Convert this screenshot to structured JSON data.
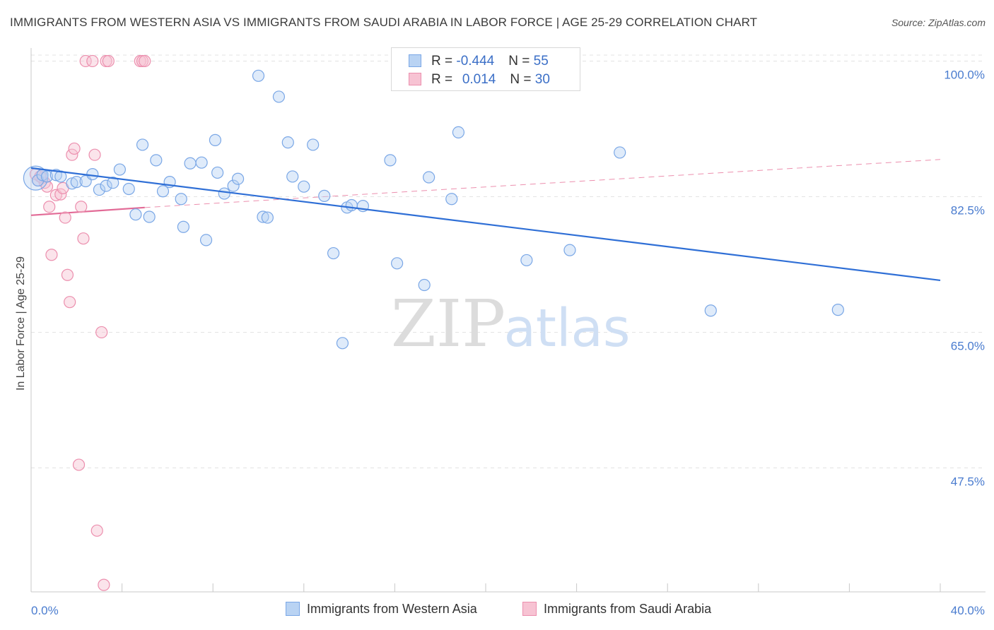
{
  "header": {
    "title": "IMMIGRANTS FROM WESTERN ASIA VS IMMIGRANTS FROM SAUDI ARABIA IN LABOR FORCE | AGE 25-29 CORRELATION CHART",
    "source": "Source: ZipAtlas.com"
  },
  "watermark": {
    "zip": "ZIP",
    "atlas": "atlas"
  },
  "legend": {
    "series1": {
      "r_label": "R = ",
      "r_value": "-0.444",
      "n_label": "N = ",
      "n_value": "55",
      "color": "#a9c8f0"
    },
    "series2": {
      "r_label": "R = ",
      "r_value": "0.014",
      "n_label": "N = ",
      "n_value": "30",
      "color": "#f5b6c9"
    }
  },
  "bottom_legend": {
    "series1": "Immigrants from Western Asia",
    "series2": "Immigrants from Saudi Arabia"
  },
  "chart_data": {
    "type": "scatter",
    "ylabel": "In Labor Force | Age 25-29",
    "xlabel": "",
    "xlim": [
      0,
      40
    ],
    "ylim": [
      31.5,
      101.5
    ],
    "y_ticks": [
      {
        "value": 100,
        "label": "100.0%"
      },
      {
        "value": 82.5,
        "label": "82.5%"
      },
      {
        "value": 65,
        "label": "65.0%"
      },
      {
        "value": 47.5,
        "label": "47.5%"
      }
    ],
    "x_ticks": [
      {
        "value": 0,
        "label": "0.0%"
      },
      {
        "value": 40,
        "label": "40.0%"
      }
    ],
    "grid": true,
    "legend_position": "top-center",
    "series": [
      {
        "name": "Immigrants from Western Asia",
        "color": "#7aa7e6",
        "fill": "#b9d3f3",
        "points": [
          [
            0.3,
            84.6
          ],
          [
            0.5,
            85.3
          ],
          [
            0.7,
            85.1
          ],
          [
            1.1,
            85.3
          ],
          [
            1.3,
            85.1
          ],
          [
            1.8,
            84.2
          ],
          [
            2.0,
            84.4
          ],
          [
            2.4,
            84.5
          ],
          [
            2.7,
            85.4
          ],
          [
            3.0,
            83.4
          ],
          [
            3.3,
            83.9
          ],
          [
            3.6,
            84.3
          ],
          [
            3.9,
            86.0
          ],
          [
            4.3,
            83.5
          ],
          [
            4.6,
            80.2
          ],
          [
            4.9,
            89.2
          ],
          [
            5.2,
            79.9
          ],
          [
            5.5,
            87.2
          ],
          [
            5.8,
            83.2
          ],
          [
            6.1,
            84.4
          ],
          [
            6.6,
            82.2
          ],
          [
            6.7,
            78.6
          ],
          [
            7.0,
            86.8
          ],
          [
            7.5,
            86.9
          ],
          [
            7.7,
            76.9
          ],
          [
            8.1,
            89.8
          ],
          [
            8.2,
            85.6
          ],
          [
            8.5,
            82.9
          ],
          [
            8.9,
            83.9
          ],
          [
            9.1,
            84.8
          ],
          [
            10.0,
            98.1
          ],
          [
            10.2,
            79.9
          ],
          [
            10.4,
            79.8
          ],
          [
            10.9,
            95.4
          ],
          [
            11.3,
            89.5
          ],
          [
            11.5,
            85.1
          ],
          [
            12.0,
            83.8
          ],
          [
            12.4,
            89.2
          ],
          [
            12.9,
            82.6
          ],
          [
            13.3,
            75.2
          ],
          [
            13.7,
            63.6
          ],
          [
            13.9,
            81.1
          ],
          [
            14.1,
            81.4
          ],
          [
            14.6,
            81.3
          ],
          [
            15.8,
            87.2
          ],
          [
            16.1,
            73.9
          ],
          [
            17.3,
            71.1
          ],
          [
            17.5,
            85.0
          ],
          [
            18.5,
            82.2
          ],
          [
            18.8,
            90.8
          ],
          [
            21.8,
            74.3
          ],
          [
            23.7,
            75.6
          ],
          [
            25.9,
            88.2
          ],
          [
            29.9,
            67.8
          ],
          [
            35.5,
            67.9
          ]
        ],
        "trend": {
          "x": [
            0,
            40
          ],
          "y": [
            86.2,
            71.7
          ],
          "style": "solid"
        }
      },
      {
        "name": "Immigrants from Saudi Arabia",
        "color": "#ec8fae",
        "fill": "#f7c3d3",
        "points": [
          [
            0.2,
            85.4
          ],
          [
            0.3,
            84.6
          ],
          [
            0.5,
            84.9
          ],
          [
            0.6,
            84.3
          ],
          [
            0.7,
            83.8
          ],
          [
            0.8,
            81.2
          ],
          [
            0.9,
            75.0
          ],
          [
            1.1,
            82.7
          ],
          [
            1.3,
            82.8
          ],
          [
            1.4,
            83.6
          ],
          [
            1.5,
            79.8
          ],
          [
            1.6,
            72.4
          ],
          [
            1.7,
            68.9
          ],
          [
            1.8,
            87.9
          ],
          [
            1.9,
            88.7
          ],
          [
            2.1,
            47.9
          ],
          [
            2.2,
            81.2
          ],
          [
            2.3,
            77.1
          ],
          [
            2.4,
            100.0
          ],
          [
            2.7,
            100.0
          ],
          [
            2.8,
            87.9
          ],
          [
            2.9,
            39.4
          ],
          [
            3.1,
            65.0
          ],
          [
            3.2,
            32.4
          ],
          [
            3.3,
            100.0
          ],
          [
            3.4,
            100.0
          ],
          [
            4.8,
            100.0
          ],
          [
            4.9,
            100.0
          ],
          [
            5.0,
            100.0
          ],
          [
            0.4,
            85.1
          ]
        ],
        "trend_solid": {
          "x": [
            0,
            5.0
          ],
          "y": [
            80.1,
            81.1
          ]
        },
        "trend_dashed": {
          "x": [
            5.0,
            40
          ],
          "y": [
            81.1,
            87.3
          ]
        }
      }
    ]
  }
}
